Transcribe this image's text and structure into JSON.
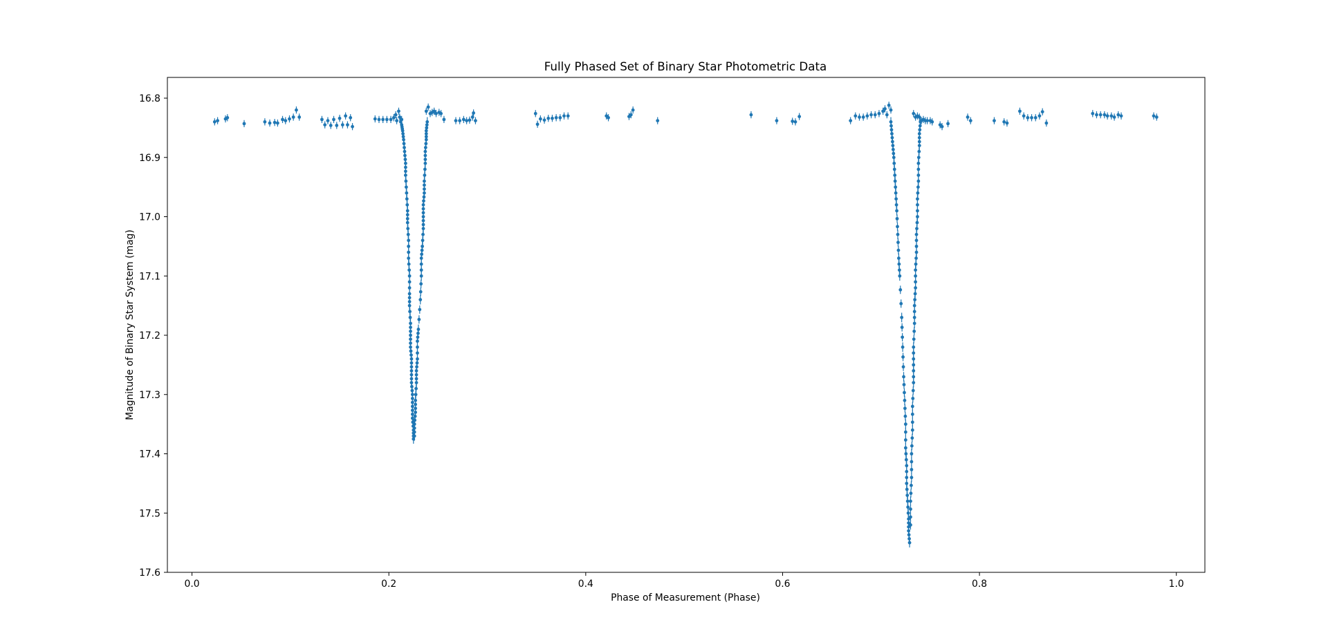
{
  "chart_data": {
    "type": "scatter",
    "title": "Fully Phased Set of Binary Star Photometric Data",
    "xlabel": "Phase of Measurement (Phase)",
    "ylabel": "Magnitude of Binary Star System (mag)",
    "xlim": [
      -0.025,
      1.029
    ],
    "ylim": [
      17.6,
      16.765
    ],
    "y_inverted": true,
    "grid": false,
    "error_bars": true,
    "marker_color": "#1f77b4",
    "x_ticks": [
      0.0,
      0.2,
      0.4,
      0.6,
      0.8,
      1.0
    ],
    "x_tick_labels": [
      "0.0",
      "0.2",
      "0.4",
      "0.6",
      "0.8",
      "1.0"
    ],
    "y_ticks": [
      16.8,
      16.9,
      17.0,
      17.1,
      17.2,
      17.3,
      17.4,
      17.5,
      17.6
    ],
    "y_tick_labels": [
      "16.8",
      "16.9",
      "17.0",
      "17.1",
      "17.2",
      "17.3",
      "17.4",
      "17.5",
      "17.6"
    ],
    "baseline_points": [
      [
        0.023,
        16.84
      ],
      [
        0.026,
        16.838
      ],
      [
        0.034,
        16.835
      ],
      [
        0.036,
        16.833
      ],
      [
        0.053,
        16.843
      ],
      [
        0.074,
        16.84
      ],
      [
        0.079,
        16.842
      ],
      [
        0.084,
        16.841
      ],
      [
        0.087,
        16.842
      ],
      [
        0.092,
        16.836
      ],
      [
        0.095,
        16.838
      ],
      [
        0.099,
        16.835
      ],
      [
        0.103,
        16.832
      ],
      [
        0.106,
        16.82
      ],
      [
        0.109,
        16.832
      ],
      [
        0.132,
        16.836
      ],
      [
        0.135,
        16.845
      ],
      [
        0.138,
        16.838
      ],
      [
        0.141,
        16.846
      ],
      [
        0.144,
        16.836
      ],
      [
        0.147,
        16.846
      ],
      [
        0.15,
        16.834
      ],
      [
        0.153,
        16.845
      ],
      [
        0.156,
        16.83
      ],
      [
        0.158,
        16.845
      ],
      [
        0.161,
        16.833
      ],
      [
        0.163,
        16.848
      ],
      [
        0.186,
        16.835
      ],
      [
        0.19,
        16.836
      ],
      [
        0.194,
        16.836
      ],
      [
        0.198,
        16.836
      ],
      [
        0.202,
        16.836
      ],
      [
        0.205,
        16.833
      ],
      [
        0.207,
        16.828
      ],
      [
        0.208,
        16.838
      ],
      [
        0.21,
        16.822
      ],
      [
        0.211,
        16.832
      ],
      [
        0.212,
        16.84
      ],
      [
        0.213,
        16.836
      ],
      [
        0.238,
        16.822
      ],
      [
        0.24,
        16.815
      ],
      [
        0.242,
        16.826
      ],
      [
        0.244,
        16.824
      ],
      [
        0.246,
        16.822
      ],
      [
        0.248,
        16.826
      ],
      [
        0.251,
        16.824
      ],
      [
        0.253,
        16.826
      ],
      [
        0.256,
        16.836
      ],
      [
        0.268,
        16.838
      ],
      [
        0.272,
        16.838
      ],
      [
        0.276,
        16.836
      ],
      [
        0.279,
        16.838
      ],
      [
        0.282,
        16.837
      ],
      [
        0.285,
        16.832
      ],
      [
        0.286,
        16.825
      ],
      [
        0.288,
        16.838
      ],
      [
        0.349,
        16.826
      ],
      [
        0.351,
        16.844
      ],
      [
        0.354,
        16.835
      ],
      [
        0.358,
        16.837
      ],
      [
        0.362,
        16.834
      ],
      [
        0.366,
        16.834
      ],
      [
        0.37,
        16.833
      ],
      [
        0.374,
        16.833
      ],
      [
        0.378,
        16.83
      ],
      [
        0.382,
        16.83
      ],
      [
        0.421,
        16.83
      ],
      [
        0.423,
        16.833
      ],
      [
        0.444,
        16.831
      ],
      [
        0.446,
        16.828
      ],
      [
        0.448,
        16.82
      ],
      [
        0.473,
        16.838
      ],
      [
        0.568,
        16.828
      ],
      [
        0.594,
        16.838
      ],
      [
        0.61,
        16.839
      ],
      [
        0.613,
        16.84
      ],
      [
        0.617,
        16.831
      ],
      [
        0.669,
        16.838
      ],
      [
        0.674,
        16.83
      ],
      [
        0.678,
        16.832
      ],
      [
        0.682,
        16.832
      ],
      [
        0.686,
        16.83
      ],
      [
        0.69,
        16.828
      ],
      [
        0.694,
        16.828
      ],
      [
        0.698,
        16.826
      ],
      [
        0.702,
        16.822
      ],
      [
        0.704,
        16.818
      ],
      [
        0.706,
        16.828
      ],
      [
        0.708,
        16.812
      ],
      [
        0.71,
        16.82
      ],
      [
        0.733,
        16.826
      ],
      [
        0.735,
        16.832
      ],
      [
        0.737,
        16.83
      ],
      [
        0.739,
        16.832
      ],
      [
        0.741,
        16.838
      ],
      [
        0.743,
        16.836
      ],
      [
        0.745,
        16.838
      ],
      [
        0.747,
        16.838
      ],
      [
        0.75,
        16.838
      ],
      [
        0.752,
        16.84
      ],
      [
        0.76,
        16.845
      ],
      [
        0.762,
        16.848
      ],
      [
        0.768,
        16.843
      ],
      [
        0.788,
        16.832
      ],
      [
        0.791,
        16.838
      ],
      [
        0.815,
        16.838
      ],
      [
        0.825,
        16.84
      ],
      [
        0.828,
        16.842
      ],
      [
        0.841,
        16.822
      ],
      [
        0.845,
        16.83
      ],
      [
        0.849,
        16.833
      ],
      [
        0.853,
        16.833
      ],
      [
        0.857,
        16.833
      ],
      [
        0.861,
        16.83
      ],
      [
        0.864,
        16.823
      ],
      [
        0.868,
        16.842
      ],
      [
        0.915,
        16.826
      ],
      [
        0.919,
        16.828
      ],
      [
        0.923,
        16.828
      ],
      [
        0.927,
        16.828
      ],
      [
        0.93,
        16.83
      ],
      [
        0.934,
        16.83
      ],
      [
        0.937,
        16.832
      ],
      [
        0.941,
        16.828
      ],
      [
        0.944,
        16.83
      ],
      [
        0.977,
        16.83
      ],
      [
        0.98,
        16.832
      ]
    ],
    "primary_eclipse": {
      "descent": [
        [
          0.213,
          16.845
        ],
        [
          0.214,
          16.855
        ],
        [
          0.215,
          16.87
        ],
        [
          0.216,
          16.89
        ],
        [
          0.217,
          16.91
        ],
        [
          0.217,
          16.93
        ],
        [
          0.218,
          16.96
        ],
        [
          0.219,
          16.99
        ],
        [
          0.219,
          17.01
        ],
        [
          0.22,
          17.04
        ],
        [
          0.22,
          17.07
        ],
        [
          0.221,
          17.1
        ],
        [
          0.221,
          17.13
        ],
        [
          0.221,
          17.15
        ],
        [
          0.222,
          17.18
        ],
        [
          0.222,
          17.2
        ],
        [
          0.222,
          17.22
        ],
        [
          0.223,
          17.24
        ],
        [
          0.223,
          17.26
        ],
        [
          0.223,
          17.28
        ],
        [
          0.224,
          17.3
        ],
        [
          0.224,
          17.32
        ],
        [
          0.224,
          17.34
        ],
        [
          0.225,
          17.36
        ],
        [
          0.225,
          17.375
        ]
      ],
      "ascent": [
        [
          0.226,
          17.37
        ],
        [
          0.226,
          17.35
        ],
        [
          0.227,
          17.33
        ],
        [
          0.227,
          17.31
        ],
        [
          0.228,
          17.28
        ],
        [
          0.228,
          17.26
        ],
        [
          0.229,
          17.24
        ],
        [
          0.229,
          17.21
        ],
        [
          0.23,
          17.19
        ],
        [
          0.232,
          17.14
        ],
        [
          0.233,
          17.1
        ],
        [
          0.233,
          17.07
        ],
        [
          0.234,
          17.05
        ],
        [
          0.235,
          17.02
        ],
        [
          0.235,
          17.0
        ],
        [
          0.235,
          16.98
        ],
        [
          0.236,
          16.96
        ],
        [
          0.236,
          16.94
        ],
        [
          0.237,
          16.91
        ],
        [
          0.237,
          16.89
        ],
        [
          0.238,
          16.87
        ],
        [
          0.238,
          16.855
        ],
        [
          0.239,
          16.84
        ]
      ]
    },
    "secondary_eclipse": {
      "descent": [
        [
          0.71,
          16.84
        ],
        [
          0.711,
          16.86
        ],
        [
          0.712,
          16.88
        ],
        [
          0.713,
          16.9
        ],
        [
          0.714,
          16.93
        ],
        [
          0.715,
          16.96
        ],
        [
          0.716,
          16.99
        ],
        [
          0.717,
          17.03
        ],
        [
          0.718,
          17.07
        ],
        [
          0.719,
          17.1
        ],
        [
          0.721,
          17.17
        ],
        [
          0.722,
          17.22
        ],
        [
          0.723,
          17.27
        ],
        [
          0.724,
          17.31
        ],
        [
          0.725,
          17.35
        ],
        [
          0.725,
          17.39
        ],
        [
          0.726,
          17.42
        ],
        [
          0.726,
          17.45
        ],
        [
          0.727,
          17.48
        ],
        [
          0.728,
          17.51
        ],
        [
          0.728,
          17.53
        ],
        [
          0.729,
          17.55
        ]
      ],
      "ascent": [
        [
          0.73,
          17.52
        ],
        [
          0.73,
          17.48
        ],
        [
          0.731,
          17.44
        ],
        [
          0.731,
          17.4
        ],
        [
          0.732,
          17.36
        ],
        [
          0.732,
          17.32
        ],
        [
          0.733,
          17.28
        ],
        [
          0.733,
          17.25
        ],
        [
          0.733,
          17.22
        ],
        [
          0.734,
          17.18
        ],
        [
          0.734,
          17.15
        ],
        [
          0.735,
          17.12
        ],
        [
          0.735,
          17.09
        ],
        [
          0.736,
          17.06
        ],
        [
          0.736,
          17.03
        ],
        [
          0.737,
          17.0
        ],
        [
          0.737,
          16.97
        ],
        [
          0.738,
          16.94
        ],
        [
          0.738,
          16.91
        ],
        [
          0.739,
          16.88
        ],
        [
          0.739,
          16.86
        ],
        [
          0.74,
          16.84
        ]
      ]
    }
  }
}
